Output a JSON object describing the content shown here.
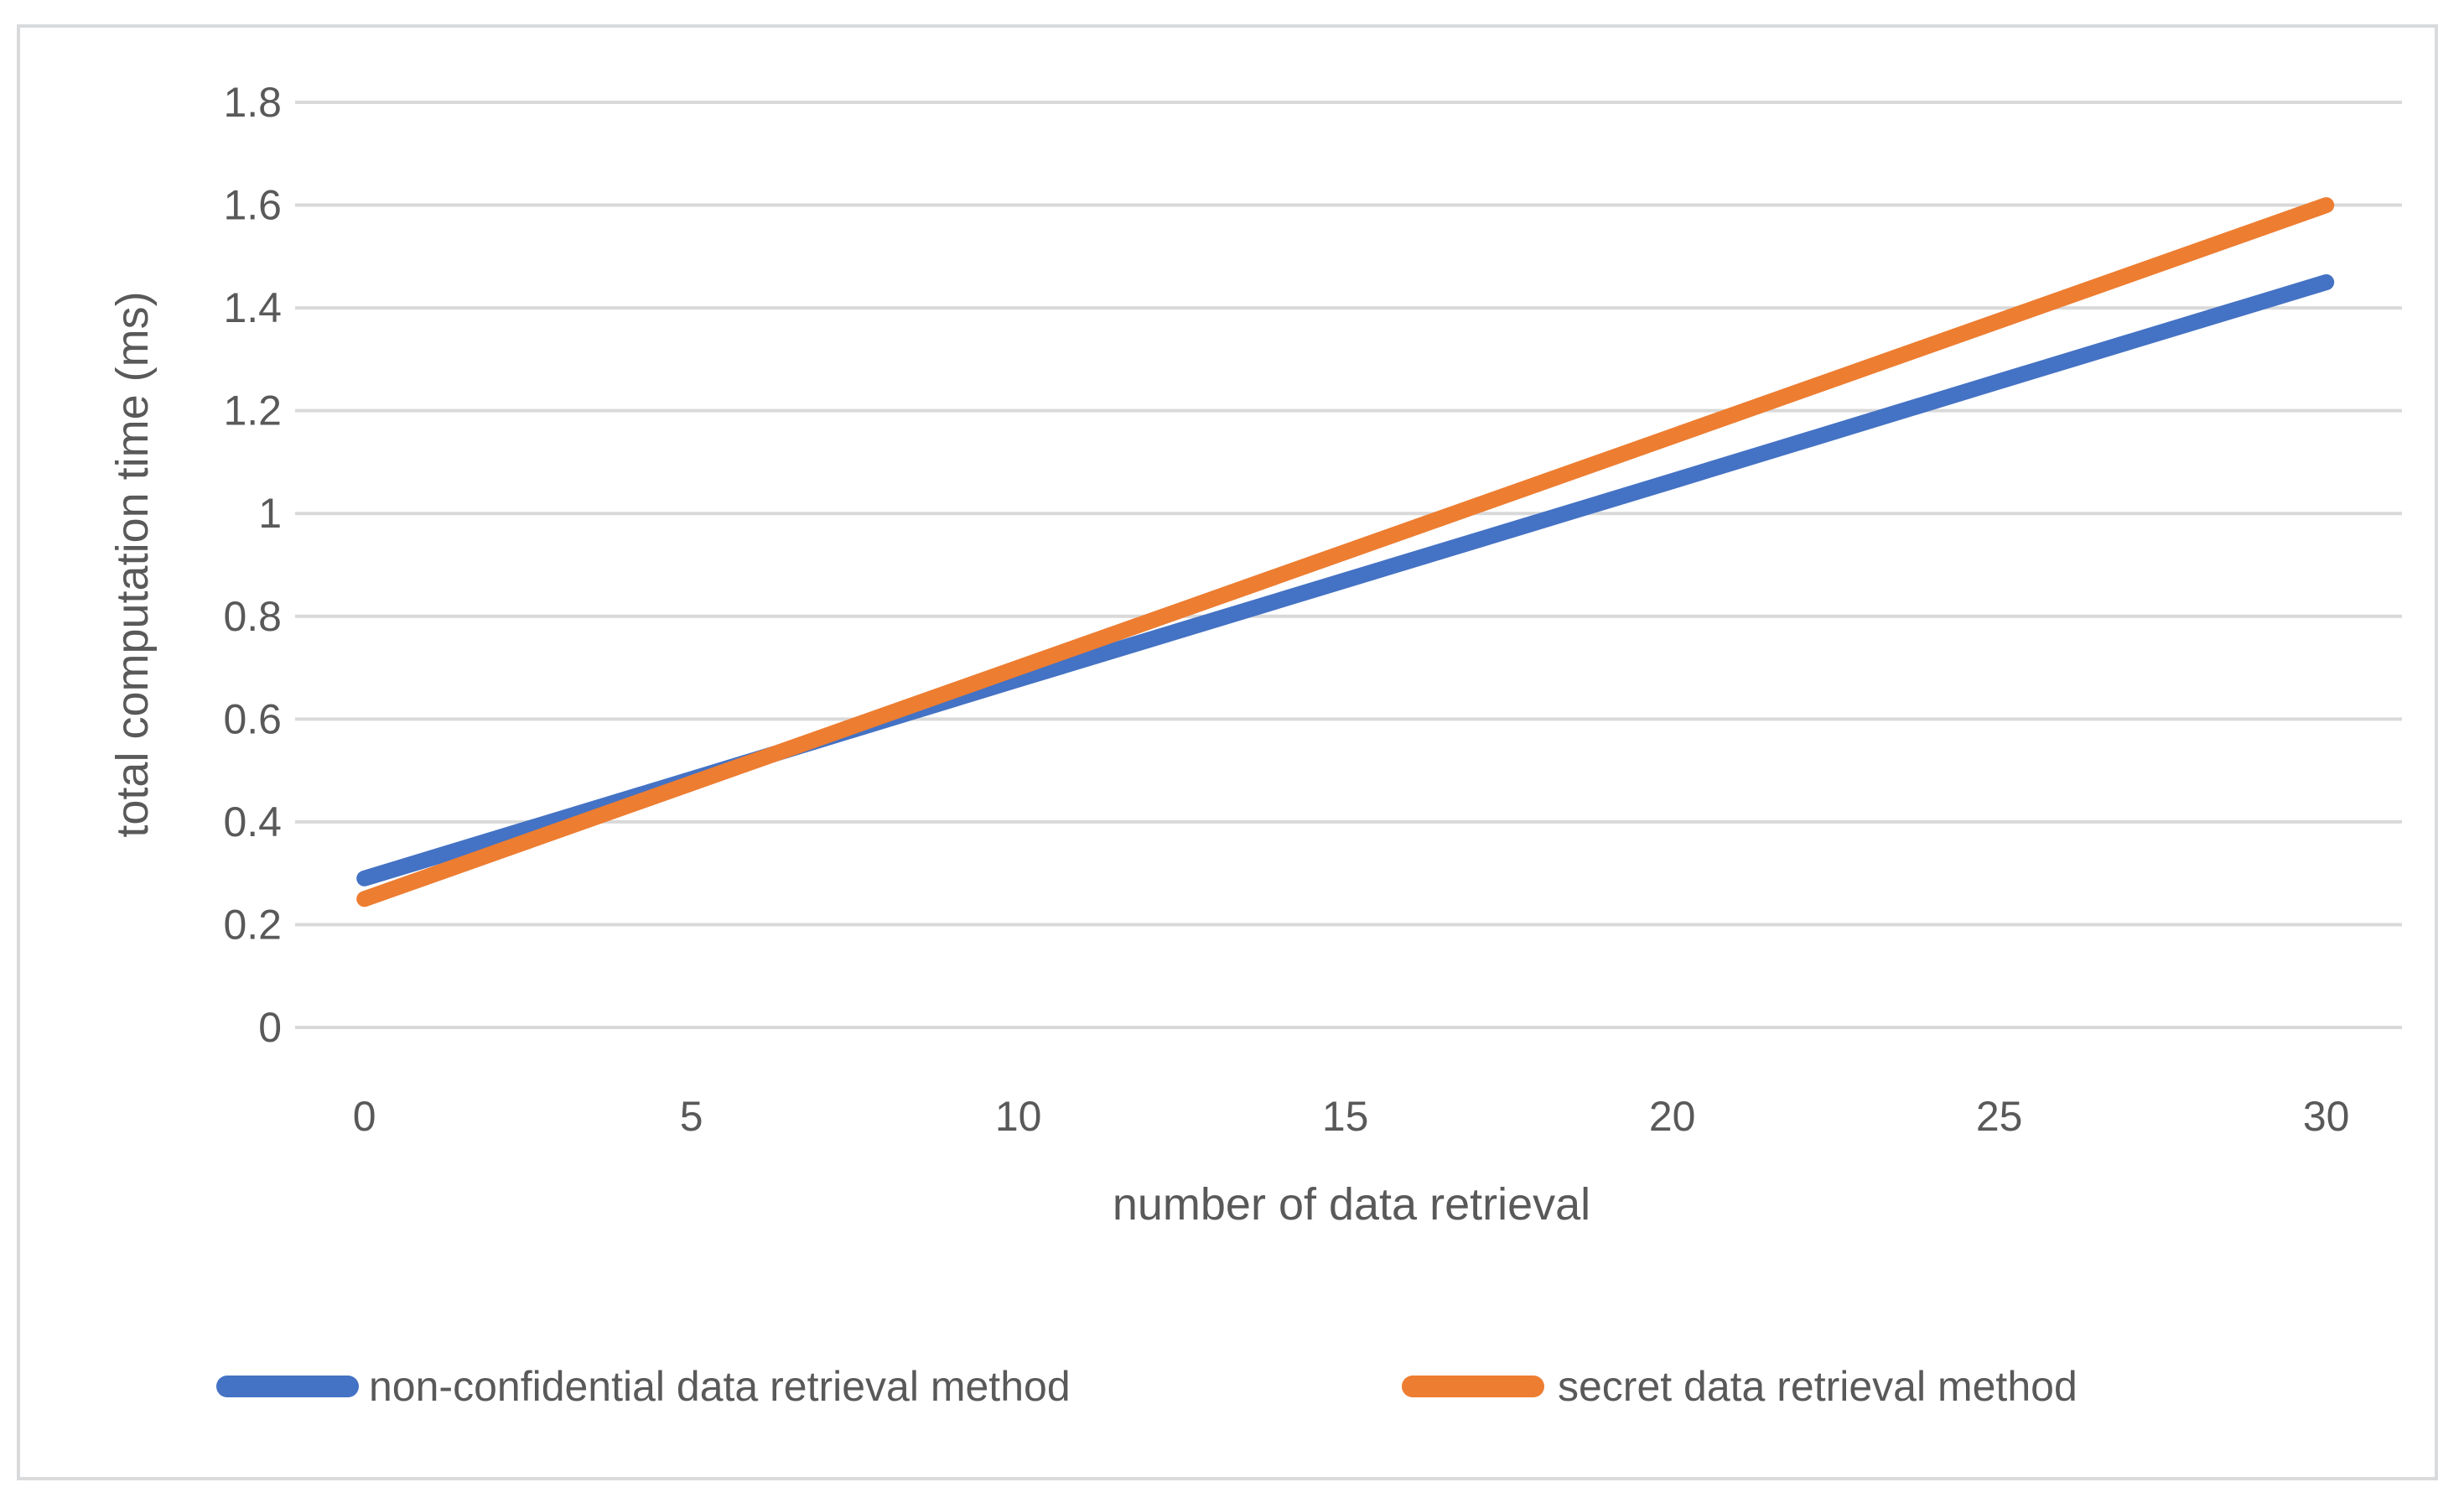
{
  "chart_data": {
    "type": "line",
    "title": "",
    "xlabel": "number of data retrieval",
    "ylabel": "total computation time (ms)",
    "x": [
      0,
      5,
      10,
      15,
      20,
      25,
      30
    ],
    "series": [
      {
        "name": "non-confidential data retrieval method",
        "color": "#4472C4",
        "values": [
          0.29,
          0.483,
          0.677,
          0.87,
          1.063,
          1.257,
          1.45
        ]
      },
      {
        "name": "secret data retrieval method",
        "color": "#ED7D31",
        "values": [
          0.25,
          0.475,
          0.7,
          0.925,
          1.15,
          1.375,
          1.6
        ]
      }
    ],
    "ylim": [
      0,
      1.8
    ],
    "y_ticks": [
      0,
      0.2,
      0.4,
      0.6,
      0.8,
      1,
      1.2,
      1.4,
      1.6,
      1.8
    ],
    "y_tick_labels": [
      "0",
      "0.2",
      "0.4",
      "0.6",
      "0.8",
      "1",
      "1.2",
      "1.4",
      "1.6",
      "1.8"
    ],
    "x_ticks": [
      0,
      5,
      10,
      15,
      20,
      25,
      30
    ],
    "x_tick_labels": [
      "0",
      "5",
      "10",
      "15",
      "20",
      "25",
      "30"
    ],
    "grid": "horizontal-only",
    "legend_position": "bottom",
    "colors": {
      "gridline": "#D9D9D9",
      "axis_text": "#595959",
      "chart_border": "#D8DADC",
      "background": "#FFFFFF"
    }
  }
}
